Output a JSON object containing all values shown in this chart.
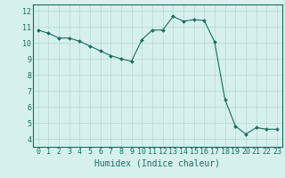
{
  "x": [
    0,
    1,
    2,
    3,
    4,
    5,
    6,
    7,
    8,
    9,
    10,
    11,
    12,
    13,
    14,
    15,
    16,
    17,
    18,
    19,
    20,
    21,
    22,
    23
  ],
  "y": [
    10.8,
    10.6,
    10.3,
    10.3,
    10.1,
    9.8,
    9.5,
    9.2,
    9.0,
    8.85,
    10.2,
    10.8,
    10.8,
    11.65,
    11.35,
    11.45,
    11.4,
    10.05,
    6.45,
    4.8,
    4.3,
    4.7,
    4.6,
    4.6
  ],
  "line_color": "#1a6b5e",
  "marker": "D",
  "marker_size": 2.0,
  "bg_color": "#d6f0ef",
  "grid_color_major": "#b8d8d4",
  "xlabel": "Humidex (Indice chaleur)",
  "xlabel_fontsize": 7,
  "xtick_labels": [
    "0",
    "1",
    "2",
    "3",
    "4",
    "5",
    "6",
    "7",
    "8",
    "9",
    "10",
    "11",
    "12",
    "13",
    "14",
    "15",
    "16",
    "17",
    "18",
    "19",
    "20",
    "21",
    "22",
    "23"
  ],
  "ytick_min": 4,
  "ytick_max": 12,
  "ytick_step": 1,
  "xlim": [
    -0.5,
    23.5
  ],
  "ylim": [
    3.5,
    12.4
  ],
  "tick_fontsize": 6.0
}
